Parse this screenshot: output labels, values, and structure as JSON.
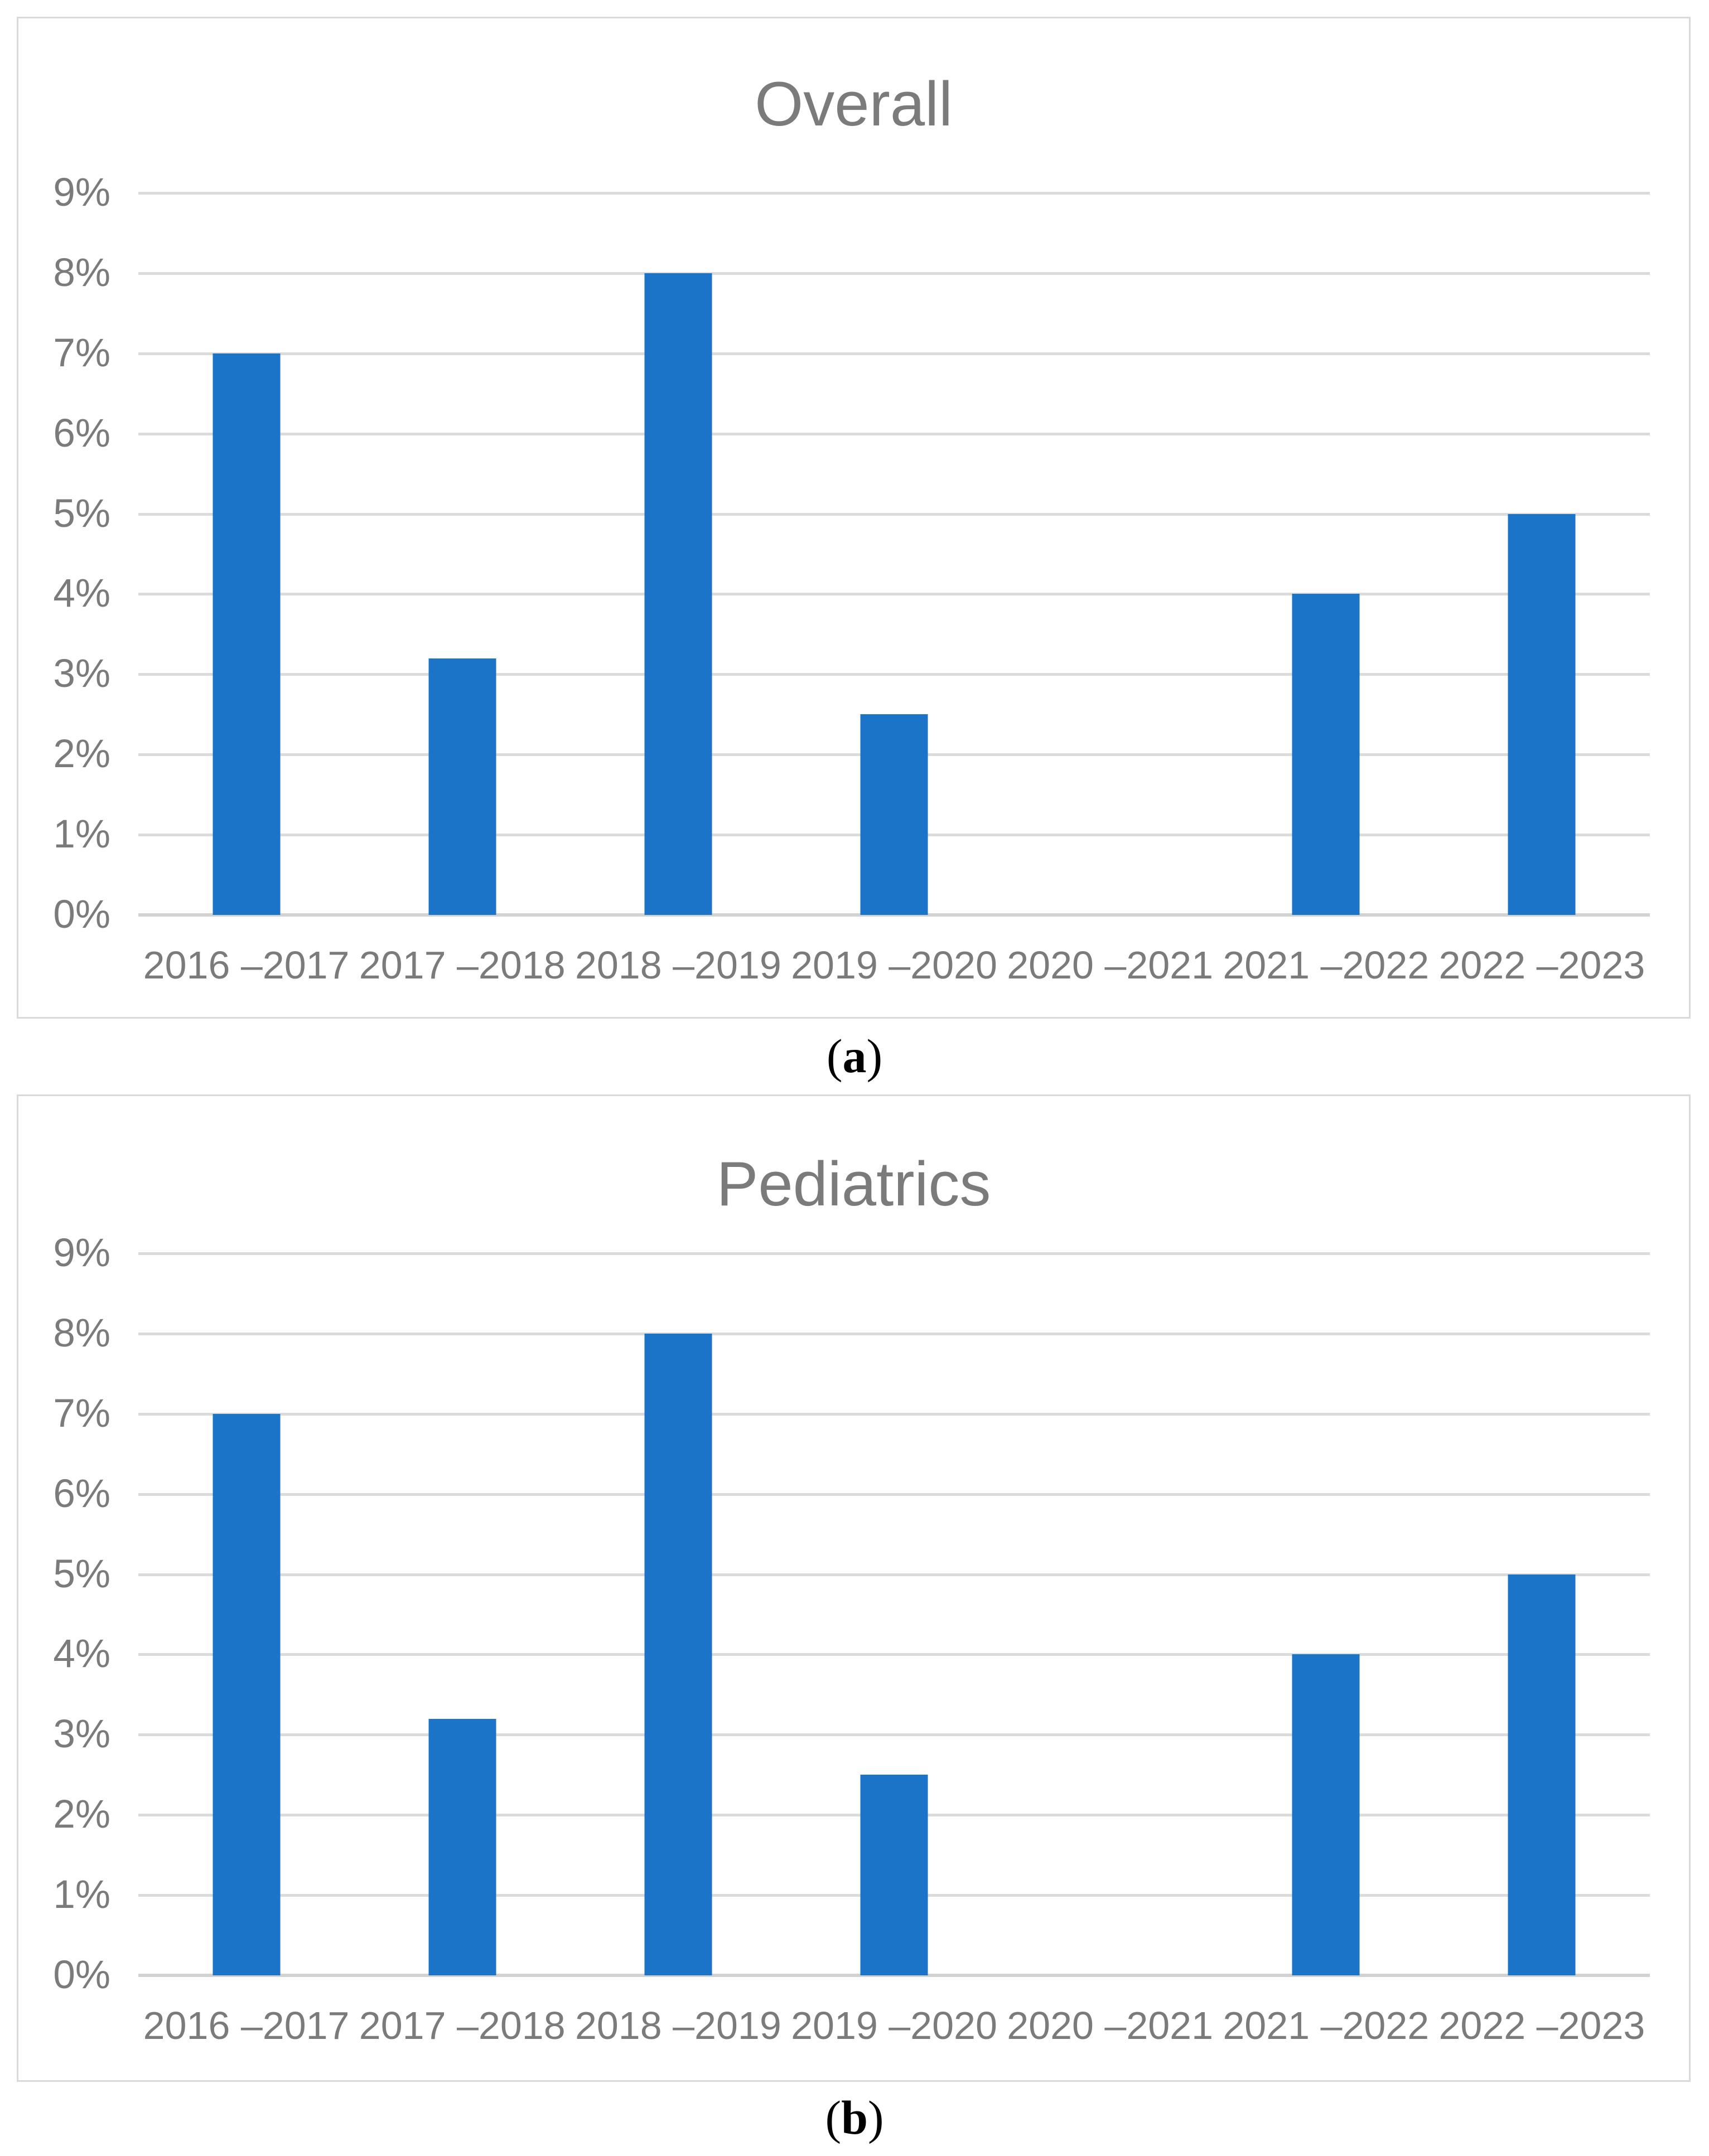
{
  "figure": {
    "background": "#ffffff",
    "panel_border_color": "#d9d9d9",
    "text_gray": "#7b7b7b",
    "bar_color": "#1b74c8",
    "gridline_color": "#dbdbdb",
    "axis_line_color": "#d2d2d2",
    "panels": [
      {
        "title": "Overall",
        "caption_open": "(",
        "caption_letter": "a",
        "caption_close": ")"
      },
      {
        "title": "Pediatrics",
        "caption_open": "(",
        "caption_letter": "b",
        "caption_close": ")"
      }
    ]
  },
  "chart_data": [
    {
      "type": "bar",
      "title": "Overall",
      "categories": [
        "2016 –2017",
        "2017 –2018",
        "2018 –2019",
        "2019 –2020",
        "2020 –2021",
        "2021 –2022",
        "2022 –2023"
      ],
      "values": [
        7,
        3.2,
        8,
        2.5,
        0,
        4,
        5
      ],
      "value_unit": "%",
      "xlabel": "",
      "ylabel": "",
      "ylim": [
        0,
        9
      ],
      "ytick_step": 1,
      "ytick_labels": [
        "0%",
        "1%",
        "2%",
        "3%",
        "4%",
        "5%",
        "6%",
        "7%",
        "8%",
        "9%"
      ],
      "grid": "horizontal",
      "legend": "none",
      "bar_color": "#1b74c8",
      "note": "no bar shown for 2020 –2021"
    },
    {
      "type": "bar",
      "title": "Pediatrics",
      "categories": [
        "2016 –2017",
        "2017 –2018",
        "2018 –2019",
        "2019 –2020",
        "2020 –2021",
        "2021 –2022",
        "2022 –2023"
      ],
      "values": [
        7,
        3.2,
        8,
        2.5,
        0,
        4,
        5
      ],
      "value_unit": "%",
      "xlabel": "",
      "ylabel": "",
      "ylim": [
        0,
        9
      ],
      "ytick_step": 1,
      "ytick_labels": [
        "0%",
        "1%",
        "2%",
        "3%",
        "4%",
        "5%",
        "6%",
        "7%",
        "8%",
        "9%"
      ],
      "grid": "horizontal",
      "legend": "none",
      "bar_color": "#1b74c8",
      "note": "no bar shown for 2020 –2021"
    }
  ]
}
